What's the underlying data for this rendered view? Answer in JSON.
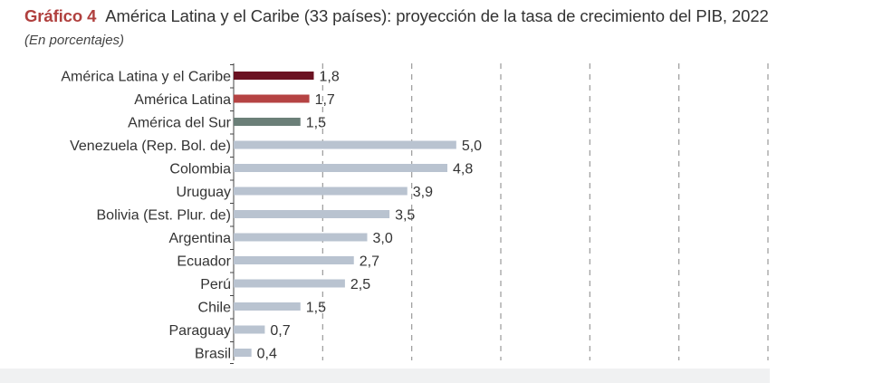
{
  "header": {
    "number": "Gráfico 4",
    "title": "América Latina y el Caribe (33 países): proyección de la tasa de crecimiento del PIB, 2022",
    "subtitle": "(En porcentajes)"
  },
  "chart_data": {
    "type": "bar",
    "orientation": "horizontal",
    "categories": [
      "América Latina y el Caribe",
      "América Latina",
      "América del Sur",
      "Venezuela (Rep. Bol. de)",
      "Colombia",
      "Uruguay",
      "Bolivia (Est. Plur. de)",
      "Argentina",
      "Ecuador",
      "Perú",
      "Chile",
      "Paraguay",
      "Brasil"
    ],
    "values": [
      1.8,
      1.7,
      1.5,
      5.0,
      4.8,
      3.9,
      3.5,
      3.0,
      2.7,
      2.5,
      1.5,
      0.7,
      0.4
    ],
    "value_labels": [
      "1,8",
      "1,7",
      "1,5",
      "5,0",
      "4,8",
      "3,9",
      "3,5",
      "3,0",
      "2,7",
      "2,5",
      "1,5",
      "0,7",
      "0,4"
    ],
    "colors": [
      "#6b1222",
      "#b54343",
      "#6b7f78",
      "#b9c3d0",
      "#b9c3d0",
      "#b9c3d0",
      "#b9c3d0",
      "#b9c3d0",
      "#b9c3d0",
      "#b9c3d0",
      "#b9c3d0",
      "#b9c3d0",
      "#b9c3d0"
    ],
    "xlim": [
      0,
      12
    ],
    "gridlines": [
      2,
      4,
      6,
      8,
      10,
      12
    ],
    "grid": "dashed-vertical"
  }
}
